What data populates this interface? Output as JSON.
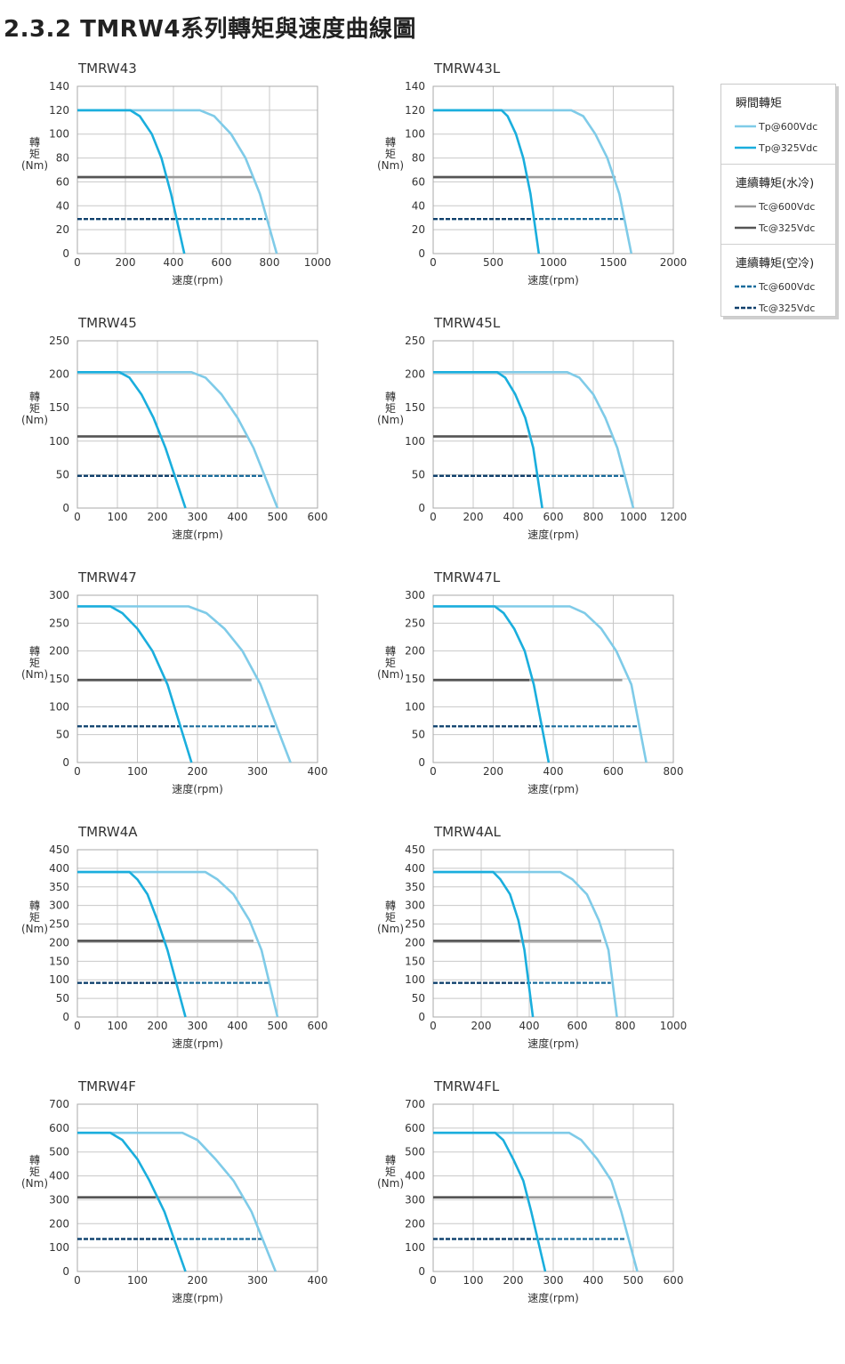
{
  "page": {
    "title": "2.3.2 TMRW4系列轉矩與速度曲線圖"
  },
  "legend": {
    "sections": [
      {
        "title": "瞬間轉矩",
        "items": [
          {
            "label": "Tp@600Vdc",
            "color": "#7fcbe8",
            "dashed": false
          },
          {
            "label": "Tp@325Vdc",
            "color": "#1aaedd",
            "dashed": false
          }
        ]
      },
      {
        "title": "連續轉矩(水冷)",
        "items": [
          {
            "label": "Tc@600Vdc",
            "color": "#9a9a9a",
            "dashed": false
          },
          {
            "label": "Tc@325Vdc",
            "color": "#555555",
            "dashed": false
          }
        ]
      },
      {
        "title": "連續轉矩(空冷)",
        "items": [
          {
            "label": "Tc@600Vdc",
            "color": "#1a6c9c",
            "dashed": true
          },
          {
            "label": "Tc@325Vdc",
            "color": "#0f3f6b",
            "dashed": true
          }
        ]
      }
    ]
  },
  "chart_data": [
    {
      "type": "line",
      "title": "TMRW43",
      "ylabel": "轉矩(Nm)",
      "xlabel": "速度(rpm)",
      "xlim": [
        0,
        1000
      ],
      "ylim": [
        0,
        140
      ],
      "xticks": [
        0,
        200,
        400,
        600,
        800,
        1000
      ],
      "yticks": [
        0,
        20,
        40,
        60,
        80,
        100,
        120,
        140
      ],
      "series": [
        {
          "name": "Tp@600Vdc",
          "x": [
            0,
            510,
            570,
            640,
            700,
            760,
            830
          ],
          "y": [
            120,
            120,
            115,
            100,
            80,
            50,
            0
          ]
        },
        {
          "name": "Tp@325Vdc",
          "x": [
            0,
            220,
            260,
            310,
            350,
            390,
            445
          ],
          "y": [
            120,
            120,
            115,
            100,
            80,
            50,
            0
          ]
        },
        {
          "name": "Tc@600Vdc (水冷)",
          "x": [
            0,
            730
          ],
          "y": [
            64,
            64
          ]
        },
        {
          "name": "Tc@325Vdc (水冷)",
          "x": [
            0,
            370
          ],
          "y": [
            64,
            64
          ]
        },
        {
          "name": "Tc@600Vdc (空冷)",
          "x": [
            0,
            790
          ],
          "y": [
            29,
            29
          ]
        },
        {
          "name": "Tc@325Vdc (空冷)",
          "x": [
            0,
            415
          ],
          "y": [
            29,
            29
          ]
        }
      ]
    },
    {
      "type": "line",
      "title": "TMRW43L",
      "ylabel": "轉矩(Nm)",
      "xlabel": "速度(rpm)",
      "xlim": [
        0,
        2000
      ],
      "ylim": [
        0,
        140
      ],
      "xticks": [
        0,
        500,
        1000,
        1500,
        2000
      ],
      "yticks": [
        0,
        20,
        40,
        60,
        80,
        100,
        120,
        140
      ],
      "series": [
        {
          "name": "Tp@600Vdc",
          "x": [
            0,
            1150,
            1250,
            1350,
            1450,
            1550,
            1650
          ],
          "y": [
            120,
            120,
            115,
            100,
            80,
            50,
            0
          ]
        },
        {
          "name": "Tp@325Vdc",
          "x": [
            0,
            570,
            620,
            690,
            750,
            810,
            880
          ],
          "y": [
            120,
            120,
            115,
            100,
            80,
            50,
            0
          ]
        },
        {
          "name": "Tc@600Vdc (水冷)",
          "x": [
            0,
            1520
          ],
          "y": [
            64,
            64
          ]
        },
        {
          "name": "Tc@325Vdc (水冷)",
          "x": [
            0,
            780
          ],
          "y": [
            64,
            64
          ]
        },
        {
          "name": "Tc@600Vdc (空冷)",
          "x": [
            0,
            1600
          ],
          "y": [
            29,
            29
          ]
        },
        {
          "name": "Tc@325Vdc (空冷)",
          "x": [
            0,
            850
          ],
          "y": [
            29,
            29
          ]
        }
      ]
    },
    {
      "type": "line",
      "title": "TMRW45",
      "ylabel": "轉矩(Nm)",
      "xlabel": "速度(rpm)",
      "xlim": [
        0,
        600
      ],
      "ylim": [
        0,
        250
      ],
      "xticks": [
        0,
        100,
        200,
        300,
        400,
        500,
        600
      ],
      "yticks": [
        0,
        50,
        100,
        150,
        200,
        250
      ],
      "series": [
        {
          "name": "Tp@600Vdc",
          "x": [
            0,
            285,
            320,
            360,
            400,
            440,
            500
          ],
          "y": [
            203,
            203,
            195,
            170,
            135,
            90,
            0
          ]
        },
        {
          "name": "Tp@325Vdc",
          "x": [
            0,
            105,
            130,
            160,
            190,
            220,
            270
          ],
          "y": [
            203,
            203,
            195,
            170,
            135,
            90,
            0
          ]
        },
        {
          "name": "Tc@600Vdc (水冷)",
          "x": [
            0,
            425
          ],
          "y": [
            107,
            107
          ]
        },
        {
          "name": "Tc@325Vdc (水冷)",
          "x": [
            0,
            205
          ],
          "y": [
            107,
            107
          ]
        },
        {
          "name": "Tc@600Vdc (空冷)",
          "x": [
            0,
            470
          ],
          "y": [
            48,
            48
          ]
        },
        {
          "name": "Tc@325Vdc (空冷)",
          "x": [
            0,
            245
          ],
          "y": [
            48,
            48
          ]
        }
      ]
    },
    {
      "type": "line",
      "title": "TMRW45L",
      "ylabel": "轉矩(Nm)",
      "xlabel": "速度(rpm)",
      "xlim": [
        0,
        1200
      ],
      "ylim": [
        0,
        250
      ],
      "xticks": [
        0,
        200,
        400,
        600,
        800,
        1000,
        1200
      ],
      "yticks": [
        0,
        50,
        100,
        150,
        200,
        250
      ],
      "series": [
        {
          "name": "Tp@600Vdc",
          "x": [
            0,
            670,
            730,
            800,
            860,
            920,
            1000
          ],
          "y": [
            203,
            203,
            195,
            170,
            135,
            90,
            0
          ]
        },
        {
          "name": "Tp@325Vdc",
          "x": [
            0,
            320,
            360,
            410,
            460,
            500,
            545
          ],
          "y": [
            203,
            203,
            195,
            170,
            135,
            90,
            0
          ]
        },
        {
          "name": "Tc@600Vdc (水冷)",
          "x": [
            0,
            900
          ],
          "y": [
            107,
            107
          ]
        },
        {
          "name": "Tc@325Vdc (水冷)",
          "x": [
            0,
            470
          ],
          "y": [
            107,
            107
          ]
        },
        {
          "name": "Tc@600Vdc (空冷)",
          "x": [
            0,
            960
          ],
          "y": [
            48,
            48
          ]
        },
        {
          "name": "Tc@325Vdc (空冷)",
          "x": [
            0,
            520
          ],
          "y": [
            48,
            48
          ]
        }
      ]
    },
    {
      "type": "line",
      "title": "TMRW47",
      "ylabel": "轉矩(Nm)",
      "xlabel": "速度(rpm)",
      "xlim": [
        0,
        400
      ],
      "ylim": [
        0,
        300
      ],
      "xticks": [
        0,
        100,
        200,
        300,
        400
      ],
      "yticks": [
        0,
        50,
        100,
        150,
        200,
        250,
        300
      ],
      "series": [
        {
          "name": "Tp@600Vdc",
          "x": [
            0,
            185,
            215,
            245,
            275,
            305,
            355
          ],
          "y": [
            280,
            280,
            268,
            240,
            200,
            140,
            0
          ]
        },
        {
          "name": "Tp@325Vdc",
          "x": [
            0,
            55,
            75,
            100,
            125,
            150,
            190
          ],
          "y": [
            280,
            280,
            268,
            240,
            200,
            140,
            0
          ]
        },
        {
          "name": "Tc@600Vdc (水冷)",
          "x": [
            0,
            290
          ],
          "y": [
            148,
            148
          ]
        },
        {
          "name": "Tc@325Vdc (水冷)",
          "x": [
            0,
            140
          ],
          "y": [
            148,
            148
          ]
        },
        {
          "name": "Tc@600Vdc (空冷)",
          "x": [
            0,
            330
          ],
          "y": [
            65,
            65
          ]
        },
        {
          "name": "Tc@325Vdc (空冷)",
          "x": [
            0,
            170
          ],
          "y": [
            65,
            65
          ]
        }
      ]
    },
    {
      "type": "line",
      "title": "TMRW47L",
      "ylabel": "轉矩(Nm)",
      "xlabel": "速度(rpm)",
      "xlim": [
        0,
        800
      ],
      "ylim": [
        0,
        300
      ],
      "xticks": [
        0,
        200,
        400,
        600,
        800
      ],
      "yticks": [
        0,
        50,
        100,
        150,
        200,
        250,
        300
      ],
      "series": [
        {
          "name": "Tp@600Vdc",
          "x": [
            0,
            455,
            505,
            560,
            610,
            660,
            710
          ],
          "y": [
            280,
            280,
            268,
            240,
            200,
            140,
            0
          ]
        },
        {
          "name": "Tp@325Vdc",
          "x": [
            0,
            205,
            235,
            270,
            305,
            335,
            385
          ],
          "y": [
            280,
            280,
            268,
            240,
            200,
            140,
            0
          ]
        },
        {
          "name": "Tc@600Vdc (水冷)",
          "x": [
            0,
            630
          ],
          "y": [
            148,
            148
          ]
        },
        {
          "name": "Tc@325Vdc (水冷)",
          "x": [
            0,
            320
          ],
          "y": [
            148,
            148
          ]
        },
        {
          "name": "Tc@600Vdc (空冷)",
          "x": [
            0,
            680
          ],
          "y": [
            65,
            65
          ]
        },
        {
          "name": "Tc@325Vdc (空冷)",
          "x": [
            0,
            360
          ],
          "y": [
            65,
            65
          ]
        }
      ]
    },
    {
      "type": "line",
      "title": "TMRW4A",
      "ylabel": "轉矩(Nm)",
      "xlabel": "速度(rpm)",
      "xlim": [
        0,
        600
      ],
      "ylim": [
        0,
        450
      ],
      "xticks": [
        0,
        100,
        200,
        300,
        400,
        500,
        600
      ],
      "yticks": [
        0,
        50,
        100,
        150,
        200,
        250,
        300,
        350,
        400,
        450
      ],
      "series": [
        {
          "name": "Tp@600Vdc",
          "x": [
            0,
            320,
            350,
            390,
            430,
            460,
            500
          ],
          "y": [
            390,
            390,
            370,
            330,
            260,
            180,
            0
          ]
        },
        {
          "name": "Tp@325Vdc",
          "x": [
            0,
            130,
            150,
            175,
            200,
            225,
            270
          ],
          "y": [
            390,
            390,
            370,
            330,
            260,
            180,
            0
          ]
        },
        {
          "name": "Tc@600Vdc (水冷)",
          "x": [
            0,
            440
          ],
          "y": [
            205,
            205
          ]
        },
        {
          "name": "Tc@325Vdc (水冷)",
          "x": [
            0,
            215
          ],
          "y": [
            205,
            205
          ]
        },
        {
          "name": "Tc@600Vdc (空冷)",
          "x": [
            0,
            480
          ],
          "y": [
            92,
            92
          ]
        },
        {
          "name": "Tc@325Vdc (空冷)",
          "x": [
            0,
            250
          ],
          "y": [
            92,
            92
          ]
        }
      ]
    },
    {
      "type": "line",
      "title": "TMRW4AL",
      "ylabel": "轉矩(Nm)",
      "xlabel": "速度(rpm)",
      "xlim": [
        0,
        1000
      ],
      "ylim": [
        0,
        450
      ],
      "xticks": [
        0,
        200,
        400,
        600,
        800,
        1000
      ],
      "yticks": [
        0,
        50,
        100,
        150,
        200,
        250,
        300,
        350,
        400,
        450
      ],
      "series": [
        {
          "name": "Tp@600Vdc",
          "x": [
            0,
            530,
            580,
            640,
            690,
            730,
            765
          ],
          "y": [
            390,
            390,
            370,
            330,
            260,
            180,
            0
          ]
        },
        {
          "name": "Tp@325Vdc",
          "x": [
            0,
            250,
            280,
            320,
            355,
            380,
            415
          ],
          "y": [
            390,
            390,
            370,
            330,
            260,
            180,
            0
          ]
        },
        {
          "name": "Tc@600Vdc (水冷)",
          "x": [
            0,
            700
          ],
          "y": [
            205,
            205
          ]
        },
        {
          "name": "Tc@325Vdc (水冷)",
          "x": [
            0,
            360
          ],
          "y": [
            205,
            205
          ]
        },
        {
          "name": "Tc@600Vdc (空冷)",
          "x": [
            0,
            740
          ],
          "y": [
            92,
            92
          ]
        },
        {
          "name": "Tc@325Vdc (空冷)",
          "x": [
            0,
            400
          ],
          "y": [
            92,
            92
          ]
        }
      ]
    },
    {
      "type": "line",
      "title": "TMRW4F",
      "ylabel": "轉矩(Nm)",
      "xlabel": "速度(rpm)",
      "xlim": [
        0,
        400
      ],
      "ylim": [
        0,
        700
      ],
      "xticks": [
        0,
        100,
        200,
        300,
        400
      ],
      "yticks": [
        0,
        100,
        200,
        300,
        400,
        500,
        600,
        700
      ],
      "series": [
        {
          "name": "Tp@600Vdc",
          "x": [
            0,
            175,
            200,
            230,
            260,
            290,
            330
          ],
          "y": [
            580,
            580,
            550,
            470,
            380,
            250,
            0
          ]
        },
        {
          "name": "Tp@325Vdc",
          "x": [
            0,
            55,
            75,
            100,
            120,
            145,
            180
          ],
          "y": [
            580,
            580,
            550,
            470,
            380,
            250,
            0
          ]
        },
        {
          "name": "Tc@600Vdc (水冷)",
          "x": [
            0,
            275
          ],
          "y": [
            310,
            310
          ]
        },
        {
          "name": "Tc@325Vdc (水冷)",
          "x": [
            0,
            130
          ],
          "y": [
            310,
            310
          ]
        },
        {
          "name": "Tc@600Vdc (空冷)",
          "x": [
            0,
            310
          ],
          "y": [
            136,
            136
          ]
        },
        {
          "name": "Tc@325Vdc (空冷)",
          "x": [
            0,
            160
          ],
          "y": [
            136,
            136
          ]
        }
      ]
    },
    {
      "type": "line",
      "title": "TMRW4FL",
      "ylabel": "轉矩(Nm)",
      "xlabel": "速度(rpm)",
      "xlim": [
        0,
        600
      ],
      "ylim": [
        0,
        700
      ],
      "xticks": [
        0,
        100,
        200,
        300,
        400,
        500,
        600
      ],
      "yticks": [
        0,
        100,
        200,
        300,
        400,
        500,
        600,
        700
      ],
      "series": [
        {
          "name": "Tp@600Vdc",
          "x": [
            0,
            340,
            370,
            410,
            445,
            470,
            510
          ],
          "y": [
            580,
            580,
            550,
            470,
            380,
            250,
            0
          ]
        },
        {
          "name": "Tp@325Vdc",
          "x": [
            0,
            155,
            175,
            200,
            225,
            245,
            280
          ],
          "y": [
            580,
            580,
            550,
            470,
            380,
            250,
            0
          ]
        },
        {
          "name": "Tc@600Vdc (水冷)",
          "x": [
            0,
            450
          ],
          "y": [
            310,
            310
          ]
        },
        {
          "name": "Tc@325Vdc (水冷)",
          "x": [
            0,
            225
          ],
          "y": [
            310,
            310
          ]
        },
        {
          "name": "Tc@600Vdc (空冷)",
          "x": [
            0,
            480
          ],
          "y": [
            136,
            136
          ]
        },
        {
          "name": "Tc@325Vdc (空冷)",
          "x": [
            0,
            250
          ],
          "y": [
            136,
            136
          ]
        }
      ]
    }
  ]
}
